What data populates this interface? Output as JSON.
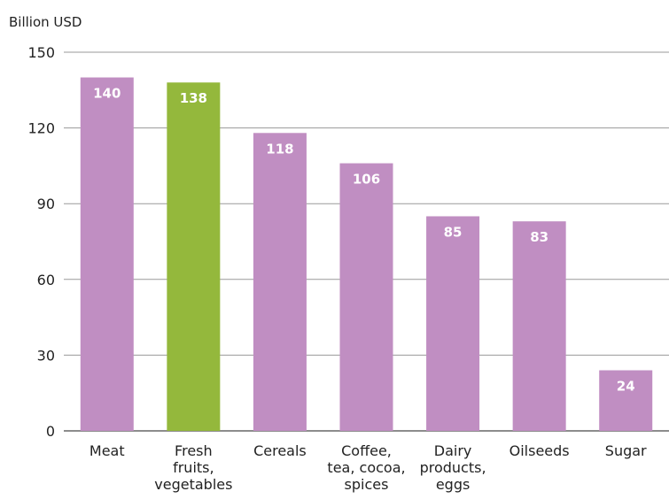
{
  "chart_data": {
    "type": "bar",
    "title": "",
    "xlabel": "",
    "ylabel": "Billion USD",
    "ylim": [
      0,
      150
    ],
    "yticks": [
      0,
      30,
      60,
      90,
      120,
      150
    ],
    "grid": true,
    "legend": "none",
    "categories": [
      [
        "Meat"
      ],
      [
        "Fresh",
        "fruits,",
        "vegetables"
      ],
      [
        "Cereals"
      ],
      [
        "Coffee,",
        "tea, cocoa,",
        "spices"
      ],
      [
        "Dairy",
        "products,",
        "eggs"
      ],
      [
        "Oilseeds"
      ],
      [
        "Sugar"
      ]
    ],
    "values": [
      140,
      138,
      118,
      106,
      85,
      83,
      24
    ],
    "bar_colors": [
      "#c08ec2",
      "#94b83c",
      "#c08ec2",
      "#c08ec2",
      "#c08ec2",
      "#c08ec2",
      "#c08ec2"
    ],
    "colors": {
      "grid": "#9a9a9a",
      "axis": "#666666",
      "label_text": "#ffffff"
    }
  }
}
